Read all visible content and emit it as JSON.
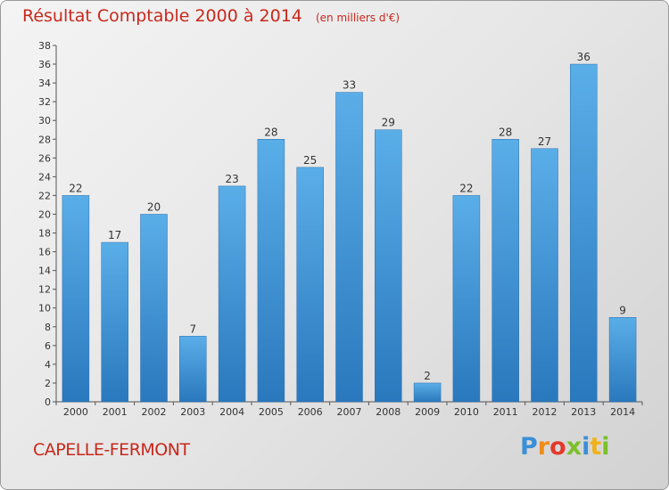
{
  "chart_data": {
    "type": "bar",
    "title": "Résultat Comptable 2000 à 2014",
    "unit_label": "(en milliers d'€)",
    "categories": [
      "2000",
      "2001",
      "2002",
      "2003",
      "2004",
      "2005",
      "2006",
      "2007",
      "2008",
      "2009",
      "2010",
      "2011",
      "2012",
      "2013",
      "2014"
    ],
    "values": [
      22,
      17,
      20,
      7,
      23,
      28,
      25,
      33,
      29,
      2,
      22,
      28,
      27,
      36,
      9
    ],
    "ylim": [
      0,
      38
    ],
    "ytick_step": 2,
    "xlabel": "",
    "ylabel": "",
    "grid": false,
    "bar_color": "#3f96d8"
  },
  "commune_name": "CAPELLE-FERMONT",
  "logo": {
    "letters": [
      "P",
      "r",
      "o",
      "x",
      "i",
      "t",
      "i"
    ],
    "colors": [
      "#3b8fd6",
      "#f08c1a",
      "#e23a2a",
      "#7bbf2a",
      "#3b8fd6",
      "#f0b21a",
      "#7bbf2a"
    ]
  }
}
